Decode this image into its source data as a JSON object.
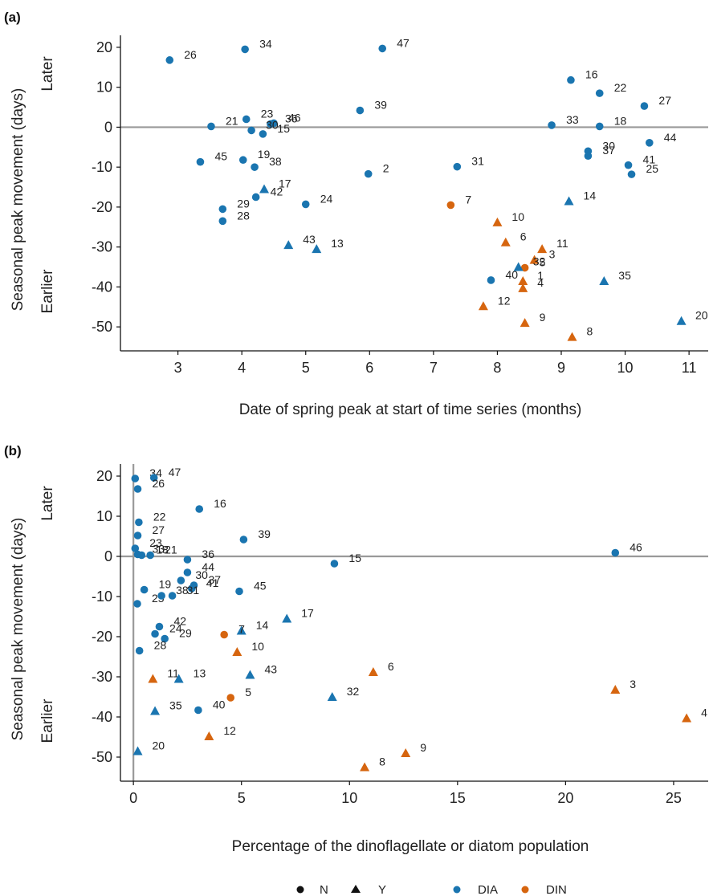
{
  "colors": {
    "DIA": "#1a75b0",
    "DIN": "#d6650f"
  },
  "legend": {
    "n_label": "N",
    "y_label": "Y",
    "dia_label": "DIA",
    "din_label": "DIN"
  },
  "chart_data": [
    {
      "type": "scatter",
      "panel_label": "(a)",
      "xlabel": "Date of spring peak at start of time series (months)",
      "ylabel": "Seasonal peak movement (days)",
      "later_label": "Later",
      "earlier_label": "Earlier",
      "xlim": [
        2.1,
        11.3
      ],
      "ylim": [
        -56,
        23
      ],
      "xticks": [
        3,
        4,
        5,
        6,
        7,
        8,
        9,
        10,
        11
      ],
      "yticks": [
        20,
        10,
        0,
        -10,
        -20,
        -30,
        -40,
        -50
      ],
      "hline": 0,
      "points": [
        {
          "id": "26",
          "x": 2.87,
          "y": 16.8,
          "g": "DIA",
          "m": "N"
        },
        {
          "id": "34",
          "x": 4.05,
          "y": 19.5,
          "g": "DIA",
          "m": "N"
        },
        {
          "id": "47",
          "x": 6.2,
          "y": 19.7,
          "g": "DIA",
          "m": "N"
        },
        {
          "id": "16",
          "x": 9.15,
          "y": 11.8,
          "g": "DIA",
          "m": "N"
        },
        {
          "id": "22",
          "x": 9.6,
          "y": 8.5,
          "g": "DIA",
          "m": "N"
        },
        {
          "id": "27",
          "x": 10.3,
          "y": 5.3,
          "g": "DIA",
          "m": "N"
        },
        {
          "id": "39",
          "x": 5.85,
          "y": 4.2,
          "g": "DIA",
          "m": "N"
        },
        {
          "id": "23",
          "x": 4.07,
          "y": 2.0,
          "g": "DIA",
          "m": "N"
        },
        {
          "id": "21",
          "x": 3.52,
          "y": 0.2,
          "g": "DIA",
          "m": "N"
        },
        {
          "id": "36",
          "x": 4.45,
          "y": 0.8,
          "g": "DIA",
          "m": "N"
        },
        {
          "id": "46",
          "x": 4.5,
          "y": 1.0,
          "g": "DIA",
          "m": "N"
        },
        {
          "id": "30",
          "x": 4.15,
          "y": -0.8,
          "g": "DIA",
          "m": "N"
        },
        {
          "id": "15",
          "x": 4.33,
          "y": -1.7,
          "g": "DIA",
          "m": "N"
        },
        {
          "id": "33",
          "x": 8.85,
          "y": 0.5,
          "g": "DIA",
          "m": "N"
        },
        {
          "id": "18",
          "x": 9.6,
          "y": 0.2,
          "g": "DIA",
          "m": "N"
        },
        {
          "id": "44",
          "x": 10.38,
          "y": -3.9,
          "g": "DIA",
          "m": "N"
        },
        {
          "id": "30b",
          "x": 9.42,
          "y": -6.0,
          "g": "DIA",
          "m": "N",
          "label": "30"
        },
        {
          "id": "37",
          "x": 9.42,
          "y": -7.2,
          "g": "DIA",
          "m": "N"
        },
        {
          "id": "41",
          "x": 10.05,
          "y": -9.5,
          "g": "DIA",
          "m": "N"
        },
        {
          "id": "25",
          "x": 10.1,
          "y": -11.8,
          "g": "DIA",
          "m": "N"
        },
        {
          "id": "45",
          "x": 3.35,
          "y": -8.7,
          "g": "DIA",
          "m": "N"
        },
        {
          "id": "19",
          "x": 4.02,
          "y": -8.2,
          "g": "DIA",
          "m": "N"
        },
        {
          "id": "38",
          "x": 4.2,
          "y": -10.0,
          "g": "DIA",
          "m": "N"
        },
        {
          "id": "2",
          "x": 5.98,
          "y": -11.7,
          "g": "DIA",
          "m": "N"
        },
        {
          "id": "31",
          "x": 7.37,
          "y": -9.9,
          "g": "DIA",
          "m": "N"
        },
        {
          "id": "17",
          "x": 4.35,
          "y": -15.5,
          "g": "DIA",
          "m": "Y"
        },
        {
          "id": "42",
          "x": 4.22,
          "y": -17.5,
          "g": "DIA",
          "m": "N"
        },
        {
          "id": "29",
          "x": 3.7,
          "y": -20.5,
          "g": "DIA",
          "m": "N"
        },
        {
          "id": "28",
          "x": 3.7,
          "y": -23.5,
          "g": "DIA",
          "m": "N"
        },
        {
          "id": "24",
          "x": 5.0,
          "y": -19.3,
          "g": "DIA",
          "m": "N"
        },
        {
          "id": "7",
          "x": 7.27,
          "y": -19.5,
          "g": "DIN",
          "m": "N"
        },
        {
          "id": "14",
          "x": 9.12,
          "y": -18.5,
          "g": "DIA",
          "m": "Y"
        },
        {
          "id": "10",
          "x": 8.0,
          "y": -23.8,
          "g": "DIN",
          "m": "Y"
        },
        {
          "id": "43",
          "x": 4.73,
          "y": -29.5,
          "g": "DIA",
          "m": "Y"
        },
        {
          "id": "13",
          "x": 5.17,
          "y": -30.5,
          "g": "DIA",
          "m": "Y"
        },
        {
          "id": "6",
          "x": 8.13,
          "y": -28.8,
          "g": "DIN",
          "m": "Y"
        },
        {
          "id": "11",
          "x": 8.7,
          "y": -30.5,
          "g": "DIN",
          "m": "Y"
        },
        {
          "id": "3",
          "x": 8.58,
          "y": -33.2,
          "g": "DIN",
          "m": "Y"
        },
        {
          "id": "5",
          "x": 8.43,
          "y": -35.2,
          "g": "DIN",
          "m": "N"
        },
        {
          "id": "32",
          "x": 8.33,
          "y": -35.0,
          "g": "DIA",
          "m": "Y"
        },
        {
          "id": "40",
          "x": 7.9,
          "y": -38.3,
          "g": "DIA",
          "m": "N"
        },
        {
          "id": "1",
          "x": 8.4,
          "y": -38.5,
          "g": "DIN",
          "m": "Y"
        },
        {
          "id": "4",
          "x": 8.4,
          "y": -40.3,
          "g": "DIN",
          "m": "Y"
        },
        {
          "id": "35",
          "x": 9.67,
          "y": -38.5,
          "g": "DIA",
          "m": "Y"
        },
        {
          "id": "12",
          "x": 7.78,
          "y": -44.8,
          "g": "DIN",
          "m": "Y"
        },
        {
          "id": "9",
          "x": 8.43,
          "y": -49.0,
          "g": "DIN",
          "m": "Y"
        },
        {
          "id": "8",
          "x": 9.17,
          "y": -52.5,
          "g": "DIN",
          "m": "Y"
        },
        {
          "id": "20",
          "x": 10.88,
          "y": -48.5,
          "g": "DIA",
          "m": "Y"
        }
      ]
    },
    {
      "type": "scatter",
      "panel_label": "(b)",
      "xlabel": "Percentage of the dinoflagellate or diatom population",
      "ylabel": "Seasonal peak movement (days)",
      "later_label": "Later",
      "earlier_label": "Earlier",
      "xlim": [
        -0.6,
        26.6
      ],
      "ylim": [
        -56,
        23
      ],
      "xticks": [
        0,
        5,
        10,
        15,
        20,
        25
      ],
      "yticks": [
        20,
        10,
        0,
        -10,
        -20,
        -30,
        -40,
        -50
      ],
      "hline": 0,
      "vline": 0,
      "points": [
        {
          "id": "34",
          "x": 0.08,
          "y": 19.4,
          "g": "DIA",
          "m": "N"
        },
        {
          "id": "47",
          "x": 0.95,
          "y": 19.6,
          "g": "DIA",
          "m": "N"
        },
        {
          "id": "26",
          "x": 0.2,
          "y": 16.8,
          "g": "DIA",
          "m": "N"
        },
        {
          "id": "16",
          "x": 3.05,
          "y": 11.8,
          "g": "DIA",
          "m": "N"
        },
        {
          "id": "22",
          "x": 0.25,
          "y": 8.5,
          "g": "DIA",
          "m": "N"
        },
        {
          "id": "39",
          "x": 5.1,
          "y": 4.2,
          "g": "DIA",
          "m": "N"
        },
        {
          "id": "27",
          "x": 0.2,
          "y": 5.2,
          "g": "DIA",
          "m": "N"
        },
        {
          "id": "23",
          "x": 0.08,
          "y": 2.0,
          "g": "DIA",
          "m": "N"
        },
        {
          "id": "33",
          "x": 0.2,
          "y": 0.5,
          "g": "DIA",
          "m": "N"
        },
        {
          "id": "18",
          "x": 0.38,
          "y": 0.3,
          "g": "DIA",
          "m": "N"
        },
        {
          "id": "21",
          "x": 0.78,
          "y": 0.3,
          "g": "DIA",
          "m": "N"
        },
        {
          "id": "36",
          "x": 2.5,
          "y": -0.8,
          "g": "DIA",
          "m": "N"
        },
        {
          "id": "15",
          "x": 9.3,
          "y": -1.8,
          "g": "DIA",
          "m": "N"
        },
        {
          "id": "46",
          "x": 22.3,
          "y": 0.9,
          "g": "DIA",
          "m": "N"
        },
        {
          "id": "44",
          "x": 2.5,
          "y": -4.0,
          "g": "DIA",
          "m": "N"
        },
        {
          "id": "30",
          "x": 2.2,
          "y": -6.0,
          "g": "DIA",
          "m": "N"
        },
        {
          "id": "37",
          "x": 2.8,
          "y": -7.2,
          "g": "DIA",
          "m": "N"
        },
        {
          "id": "19",
          "x": 0.5,
          "y": -8.3,
          "g": "DIA",
          "m": "N"
        },
        {
          "id": "41",
          "x": 2.7,
          "y": -8.0,
          "g": "DIA",
          "m": "N"
        },
        {
          "id": "45",
          "x": 4.9,
          "y": -8.7,
          "g": "DIA",
          "m": "N"
        },
        {
          "id": "25",
          "x": 0.18,
          "y": -11.8,
          "g": "DIA",
          "m": "N"
        },
        {
          "id": "38",
          "x": 1.3,
          "y": -9.8,
          "g": "DIA",
          "m": "N"
        },
        {
          "id": "31",
          "x": 1.8,
          "y": -9.8,
          "g": "DIA",
          "m": "N"
        },
        {
          "id": "17",
          "x": 7.1,
          "y": -15.5,
          "g": "DIA",
          "m": "Y"
        },
        {
          "id": "42",
          "x": 1.2,
          "y": -17.5,
          "g": "DIA",
          "m": "N"
        },
        {
          "id": "14",
          "x": 5.0,
          "y": -18.5,
          "g": "DIA",
          "m": "Y"
        },
        {
          "id": "24",
          "x": 1.0,
          "y": -19.3,
          "g": "DIA",
          "m": "N"
        },
        {
          "id": "7",
          "x": 4.2,
          "y": -19.5,
          "g": "DIN",
          "m": "N"
        },
        {
          "id": "29",
          "x": 1.45,
          "y": -20.5,
          "g": "DIA",
          "m": "N"
        },
        {
          "id": "28",
          "x": 0.28,
          "y": -23.5,
          "g": "DIA",
          "m": "N"
        },
        {
          "id": "10",
          "x": 4.8,
          "y": -23.8,
          "g": "DIN",
          "m": "Y"
        },
        {
          "id": "43",
          "x": 5.4,
          "y": -29.5,
          "g": "DIA",
          "m": "Y"
        },
        {
          "id": "6",
          "x": 11.1,
          "y": -28.8,
          "g": "DIN",
          "m": "Y"
        },
        {
          "id": "11",
          "x": 0.9,
          "y": -30.5,
          "g": "DIN",
          "m": "Y"
        },
        {
          "id": "13",
          "x": 2.1,
          "y": -30.5,
          "g": "DIA",
          "m": "Y"
        },
        {
          "id": "3",
          "x": 22.3,
          "y": -33.2,
          "g": "DIN",
          "m": "Y"
        },
        {
          "id": "5",
          "x": 4.5,
          "y": -35.2,
          "g": "DIN",
          "m": "N"
        },
        {
          "id": "32",
          "x": 9.2,
          "y": -35.0,
          "g": "DIA",
          "m": "Y"
        },
        {
          "id": "35",
          "x": 1.0,
          "y": -38.5,
          "g": "DIA",
          "m": "Y"
        },
        {
          "id": "40",
          "x": 3.0,
          "y": -38.3,
          "g": "DIA",
          "m": "N"
        },
        {
          "id": "4",
          "x": 25.6,
          "y": -40.3,
          "g": "DIN",
          "m": "Y"
        },
        {
          "id": "12",
          "x": 3.5,
          "y": -44.8,
          "g": "DIN",
          "m": "Y"
        },
        {
          "id": "9",
          "x": 12.6,
          "y": -49.0,
          "g": "DIN",
          "m": "Y"
        },
        {
          "id": "8",
          "x": 10.7,
          "y": -52.5,
          "g": "DIN",
          "m": "Y"
        },
        {
          "id": "20",
          "x": 0.2,
          "y": -48.5,
          "g": "DIA",
          "m": "Y"
        }
      ]
    }
  ]
}
